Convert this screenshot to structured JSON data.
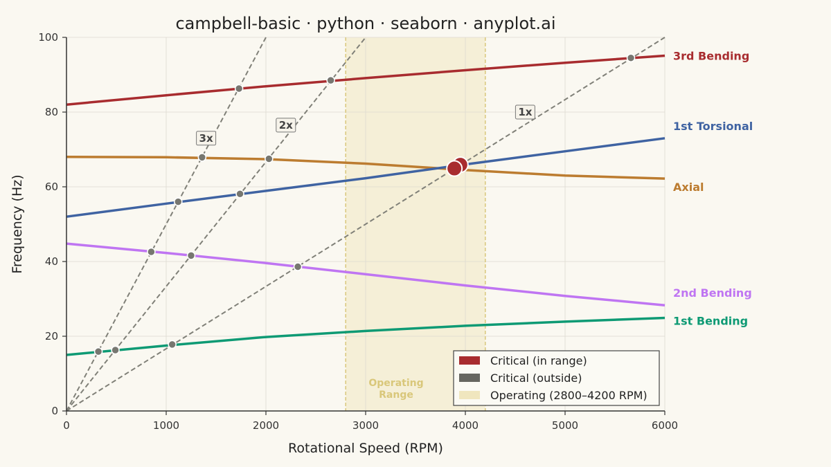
{
  "chart_data": {
    "type": "line",
    "title": "campbell-basic · python · seaborn · anyplot.ai",
    "xlabel": "Rotational Speed (RPM)",
    "ylabel": "Frequency (Hz)",
    "xlim": [
      0,
      6000
    ],
    "ylim": [
      0,
      100
    ],
    "xticks": [
      "0",
      "1000",
      "2000",
      "3000",
      "4000",
      "5000",
      "6000"
    ],
    "yticks": [
      "0",
      "20",
      "40",
      "60",
      "80",
      "100"
    ],
    "grid": true,
    "operating_range": {
      "start": 2800,
      "end": 4200,
      "label_line1": "Operating",
      "label_line2": "Range",
      "color": "#D9C77A"
    },
    "modes": [
      {
        "name": "1st Bending",
        "color": "#0E9A74",
        "x": [
          0,
          1000,
          2000,
          3000,
          4000,
          5000,
          6000
        ],
        "y": [
          15,
          17.5,
          19.8,
          21.4,
          22.8,
          23.9,
          24.9
        ]
      },
      {
        "name": "2nd Bending",
        "color": "#BF75F2",
        "x": [
          0,
          1000,
          2000,
          3000,
          4000,
          5000,
          6000
        ],
        "y": [
          44.8,
          42.3,
          39.6,
          36.6,
          33.6,
          30.8,
          28.3
        ]
      },
      {
        "name": "Axial",
        "color": "#BC7C30",
        "x": [
          0,
          1000,
          2000,
          3000,
          4000,
          5000,
          6000
        ],
        "y": [
          68,
          67.9,
          67.4,
          66.2,
          64.5,
          63,
          62.2
        ]
      },
      {
        "name": "1st Torsional",
        "color": "#3F63A2",
        "x": [
          0,
          1000,
          2000,
          3000,
          4000,
          5000,
          6000
        ],
        "y": [
          52,
          55.5,
          58.9,
          62.3,
          66,
          69.5,
          73
        ]
      },
      {
        "name": "3rd Bending",
        "color": "#A82C2F",
        "x": [
          0,
          1000,
          2000,
          3000,
          4000,
          5000,
          6000
        ],
        "y": [
          82,
          84.5,
          86.9,
          89.1,
          91.2,
          93.2,
          95.1
        ]
      }
    ],
    "engine_orders": [
      {
        "label": "1x",
        "order": 1,
        "label_x": 4600,
        "label_y": 80
      },
      {
        "label": "2x",
        "order": 2,
        "label_x": 2200,
        "label_y": 76.5
      },
      {
        "label": "3x",
        "order": 3,
        "label_x": 1400,
        "label_y": 73
      }
    ],
    "critical_outside": [
      {
        "x": 320,
        "y": 15.9
      },
      {
        "x": 490,
        "y": 16.3
      },
      {
        "x": 1060,
        "y": 17.8
      },
      {
        "x": 850,
        "y": 42.6
      },
      {
        "x": 1250,
        "y": 41.6
      },
      {
        "x": 2320,
        "y": 38.6
      },
      {
        "x": 1120,
        "y": 56
      },
      {
        "x": 1740,
        "y": 58.1
      },
      {
        "x": 1360,
        "y": 67.9
      },
      {
        "x": 2030,
        "y": 67.5
      },
      {
        "x": 1730,
        "y": 86.3
      },
      {
        "x": 2650,
        "y": 88.5
      },
      {
        "x": 5660,
        "y": 94.5
      }
    ],
    "critical_in_range": [
      {
        "x": 3950,
        "y": 65.9
      },
      {
        "x": 3890,
        "y": 64.9
      }
    ],
    "legend": {
      "placement": "lower-right",
      "items": [
        {
          "label": "Critical (in range)",
          "color": "#A82C2F"
        },
        {
          "label": "Critical (outside)",
          "color": "#666660"
        },
        {
          "label": "Operating (2800–4200 RPM)",
          "color": "#F0E6BE"
        }
      ]
    }
  }
}
